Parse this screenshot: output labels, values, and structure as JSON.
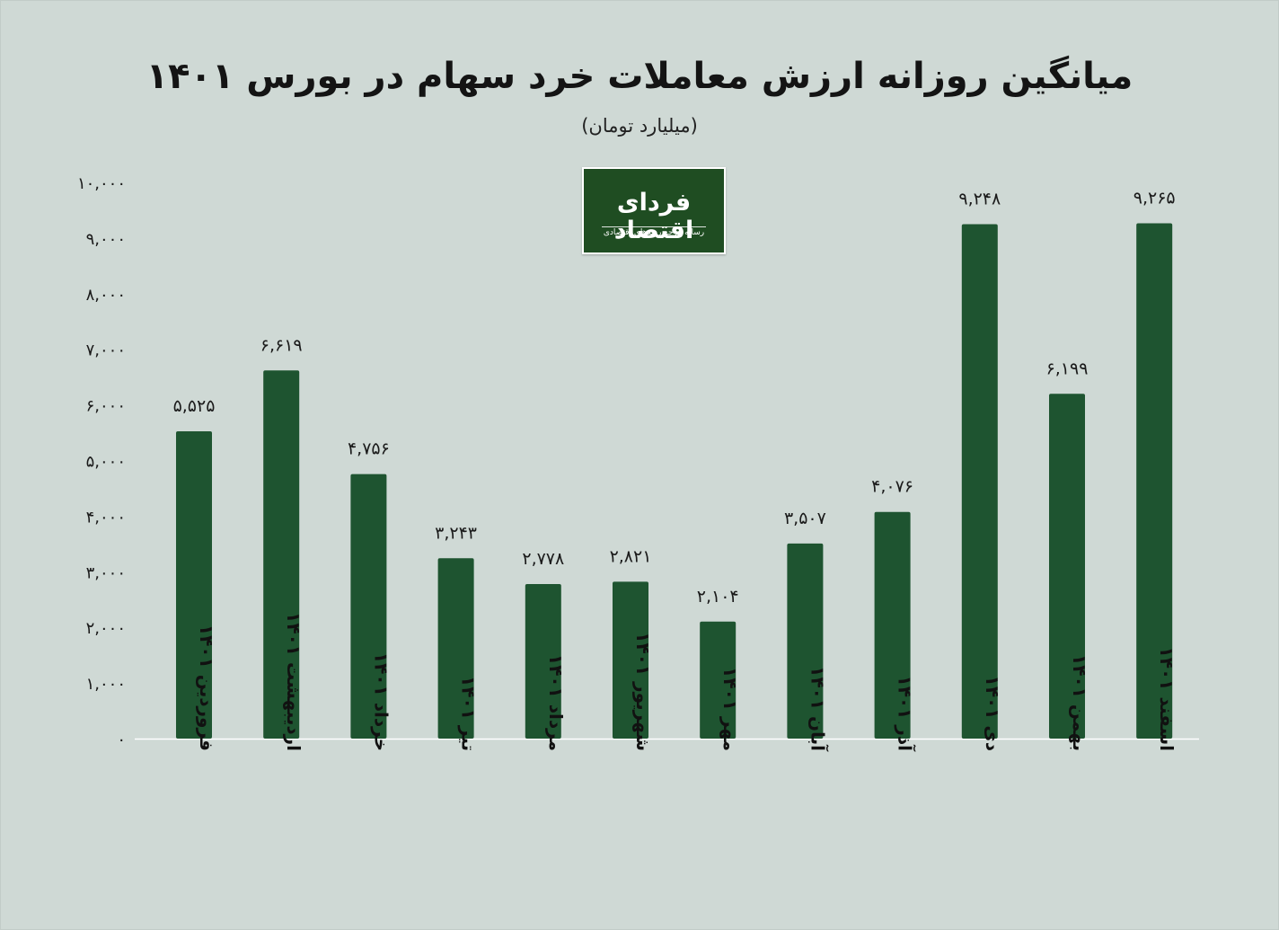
{
  "chart_data": {
    "type": "bar",
    "title": "میانگین روزانه ارزش معاملات خرد سهام در بورس ۱۴۰۱",
    "subtitle": "(میلیارد تومان)",
    "categories": [
      "فروردین ۱۴۰۱",
      "اردیبهشت ۱۴۰۱",
      "خرداد ۱۴۰۱",
      "تیر ۱۴۰۱",
      "مرداد ۱۴۰۱",
      "شهریور ۱۴۰۱",
      "مهر ۱۴۰۱",
      "آبان ۱۴۰۱",
      "آذر ۱۴۰۱",
      "دی ۱۴۰۱",
      "بهمن ۱۴۰۱",
      "اسفند ۱۴۰۱"
    ],
    "values": [
      5525,
      6619,
      4756,
      3243,
      2778,
      2821,
      2104,
      3507,
      4076,
      9248,
      6199,
      9265
    ],
    "value_labels": [
      "۵,۵۲۵",
      "۶,۶۱۹",
      "۴,۷۵۶",
      "۳,۲۴۳",
      "۲,۷۷۸",
      "۲,۸۲۱",
      "۲,۱۰۴",
      "۳,۵۰۷",
      "۴,۰۷۶",
      "۹,۲۴۸",
      "۶,۱۹۹",
      "۹,۲۶۵"
    ],
    "y_ticks": [
      0,
      1000,
      2000,
      3000,
      4000,
      5000,
      6000,
      7000,
      8000,
      9000,
      10000
    ],
    "y_tick_labels": [
      "۰",
      "۱,۰۰۰",
      "۲,۰۰۰",
      "۳,۰۰۰",
      "۴,۰۰۰",
      "۵,۰۰۰",
      "۶,۰۰۰",
      "۷,۰۰۰",
      "۸,۰۰۰",
      "۹,۰۰۰",
      "۱۰,۰۰۰"
    ],
    "ylim": [
      0,
      10000
    ],
    "grid": false,
    "bar_color": "#1e5430",
    "background_color": "#cfd9d5"
  },
  "logo": {
    "name": "فردای اقتصاد",
    "tagline": "رسانه مرجع روندهای اقتصادی",
    "color": "#1f4d22"
  }
}
